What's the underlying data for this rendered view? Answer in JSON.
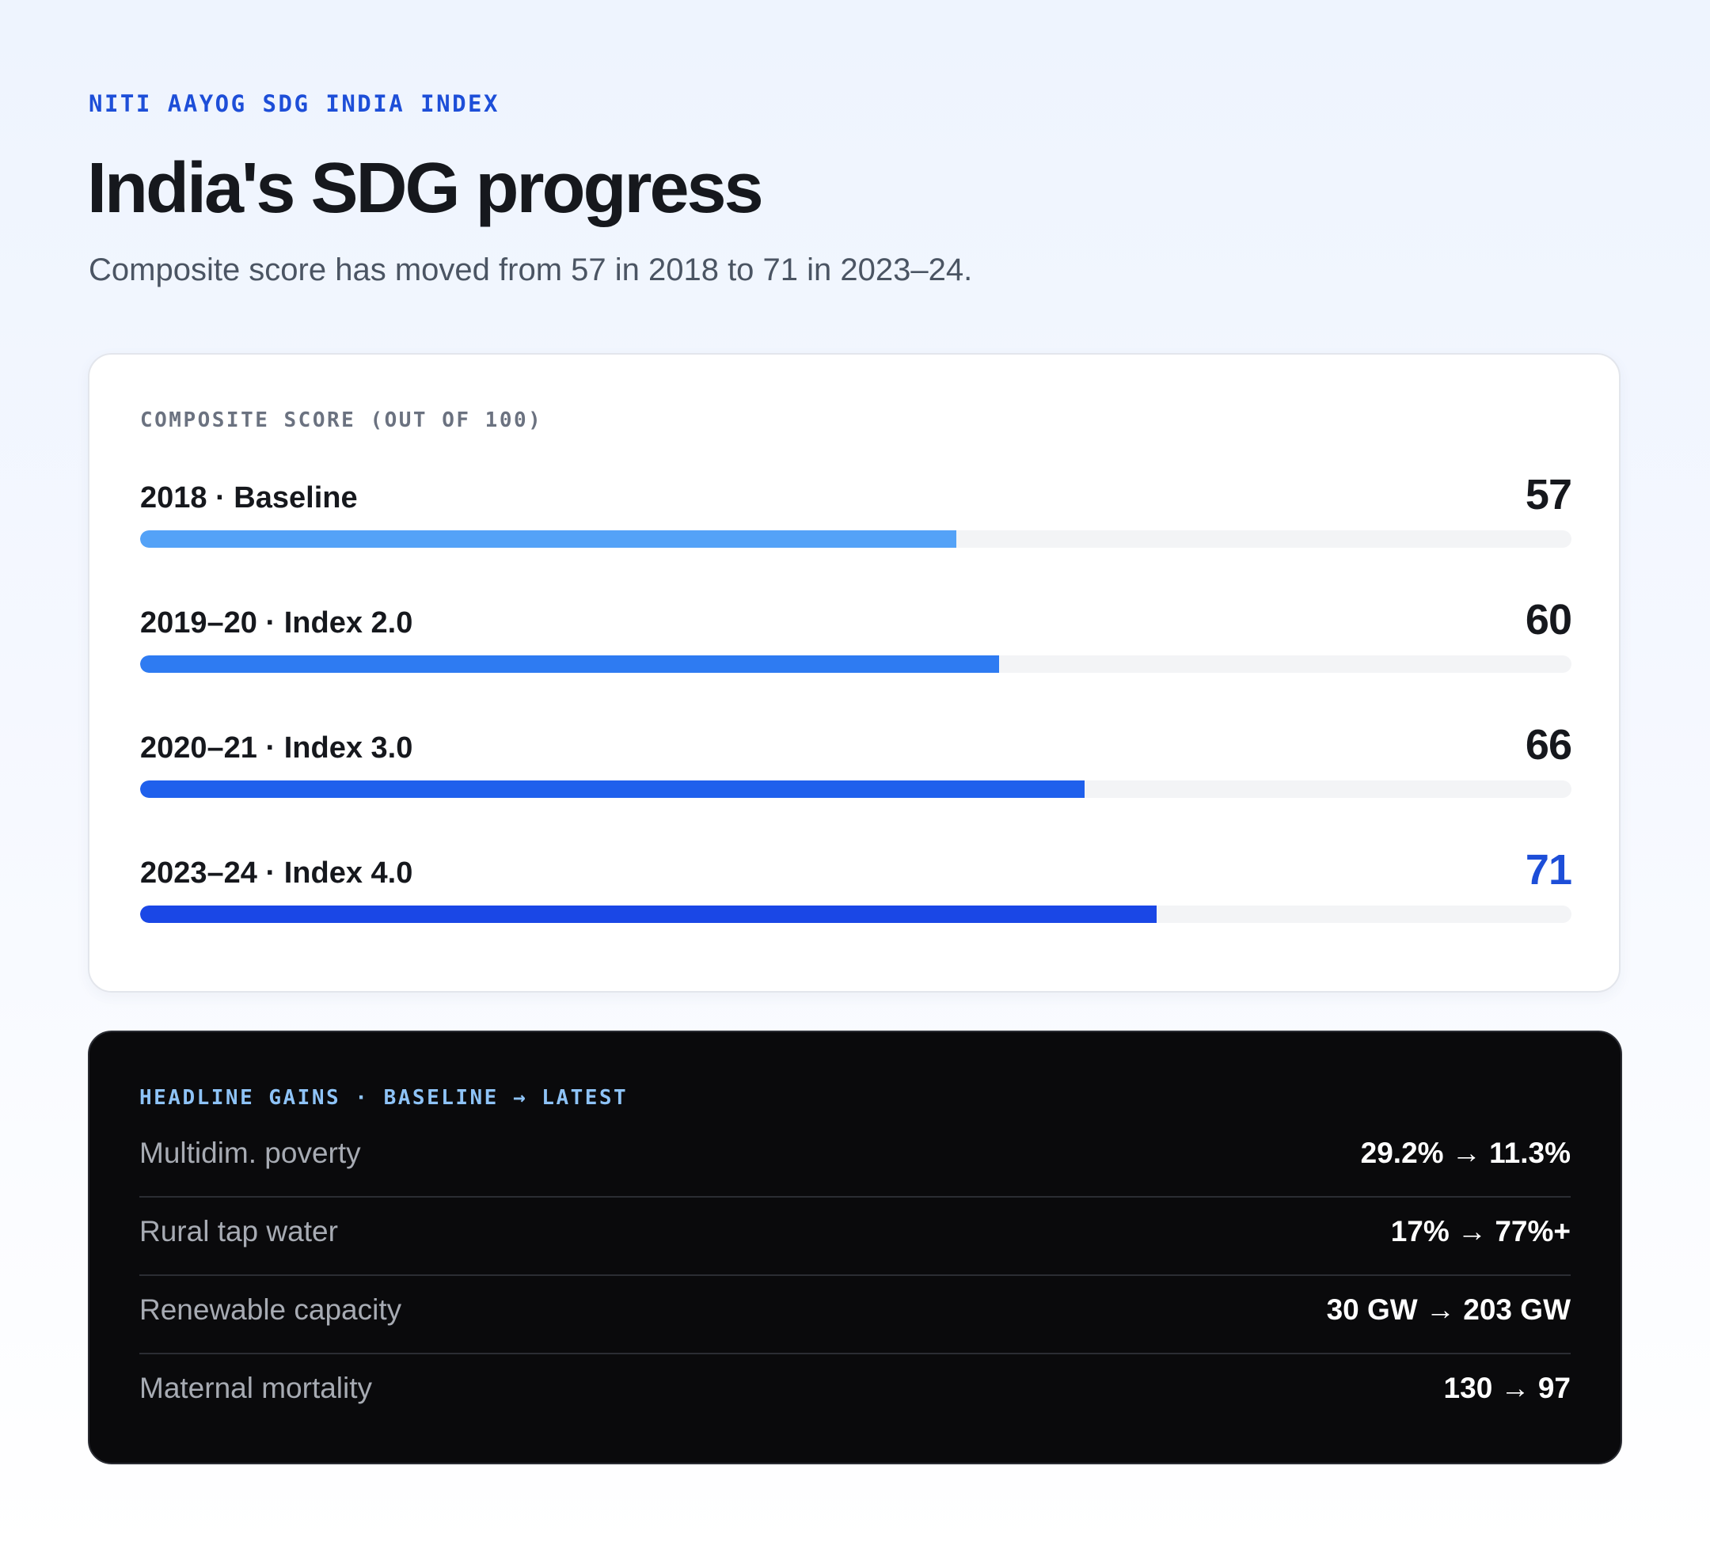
{
  "header": {
    "eyebrow": "NITI AAYOG SDG INDIA INDEX",
    "title": "India's SDG progress",
    "subtitle": "Composite score has moved from 57 in 2018 to 71 in 2023–24."
  },
  "score_card": {
    "heading": "COMPOSITE SCORE (OUT OF 100)"
  },
  "chart_data": {
    "type": "bar",
    "orientation": "horizontal",
    "title": "COMPOSITE SCORE (OUT OF 100)",
    "xlim": [
      0,
      100
    ],
    "categories": [
      "2018 · Baseline",
      "2019–20 · Index 2.0",
      "2020–21 · Index 3.0",
      "2023–24 · Index 4.0"
    ],
    "values": [
      57,
      60,
      66,
      71
    ],
    "value_labels": [
      "57",
      "60",
      "66",
      "71"
    ],
    "bar_colors": [
      "#54a2f7",
      "#2e7bf2",
      "#1f60ec",
      "#1a47e6"
    ],
    "highlight_color": "#1d4ed8",
    "track_color": "#f3f4f6",
    "grid": false,
    "legend": "none"
  },
  "gains": {
    "heading": "HEADLINE GAINS · BASELINE → LATEST",
    "rows": [
      {
        "label": "Multidim. poverty",
        "value": "29.2% → 11.3%"
      },
      {
        "label": "Rural tap water",
        "value": "17% → 77%+"
      },
      {
        "label": "Renewable capacity",
        "value": "30 GW → 203 GW"
      },
      {
        "label": "Maternal mortality",
        "value": "130 → 97"
      }
    ]
  },
  "colors": {
    "accent": "#1d4ed8",
    "gains_heading": "#8ec3f7",
    "dark_card": "#0a0a0c"
  }
}
